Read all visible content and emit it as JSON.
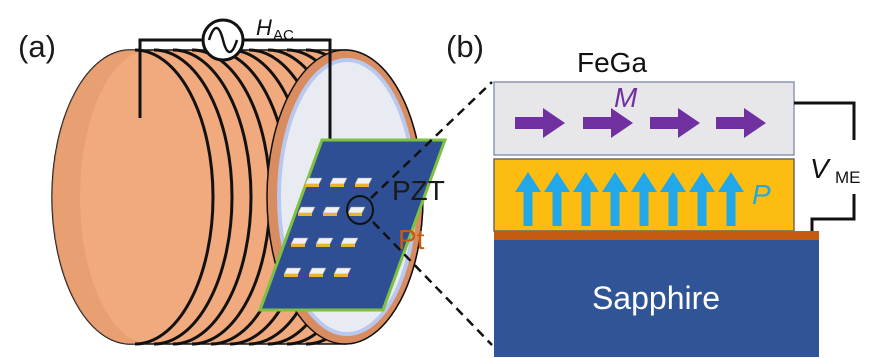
{
  "panels": {
    "a": "(a)",
    "b": "(b)"
  },
  "source": {
    "symbol": "H",
    "subscript": "AC"
  },
  "layers": {
    "top": "FeGa",
    "middle": "PZT",
    "electrode": "Pt",
    "substrate": "Sapphire"
  },
  "vectors": {
    "magnetization": "M",
    "polarization": "P"
  },
  "voltage": {
    "symbol": "V",
    "subscript": "ME"
  },
  "colors": {
    "coil": "#f0aa7e",
    "coil_dark": "#d98c60",
    "wire": "#111111",
    "core_face": "#e8ecf2",
    "core_rim": "#b9c8ee",
    "sample": "#2e4f94",
    "sample_border": "#7ec040",
    "fega": "#e7e7ea",
    "pzt": "#fdbd10",
    "pt": "#c55a11",
    "sapphire": "#2f5597",
    "m_arrow": "#7030a0",
    "p_arrow": "#22a8e8",
    "pt_text": "#c55a11"
  },
  "icons": [
    "ac-source-icon",
    "magnetization-arrow-icon",
    "polarization-arrow-icon"
  ]
}
